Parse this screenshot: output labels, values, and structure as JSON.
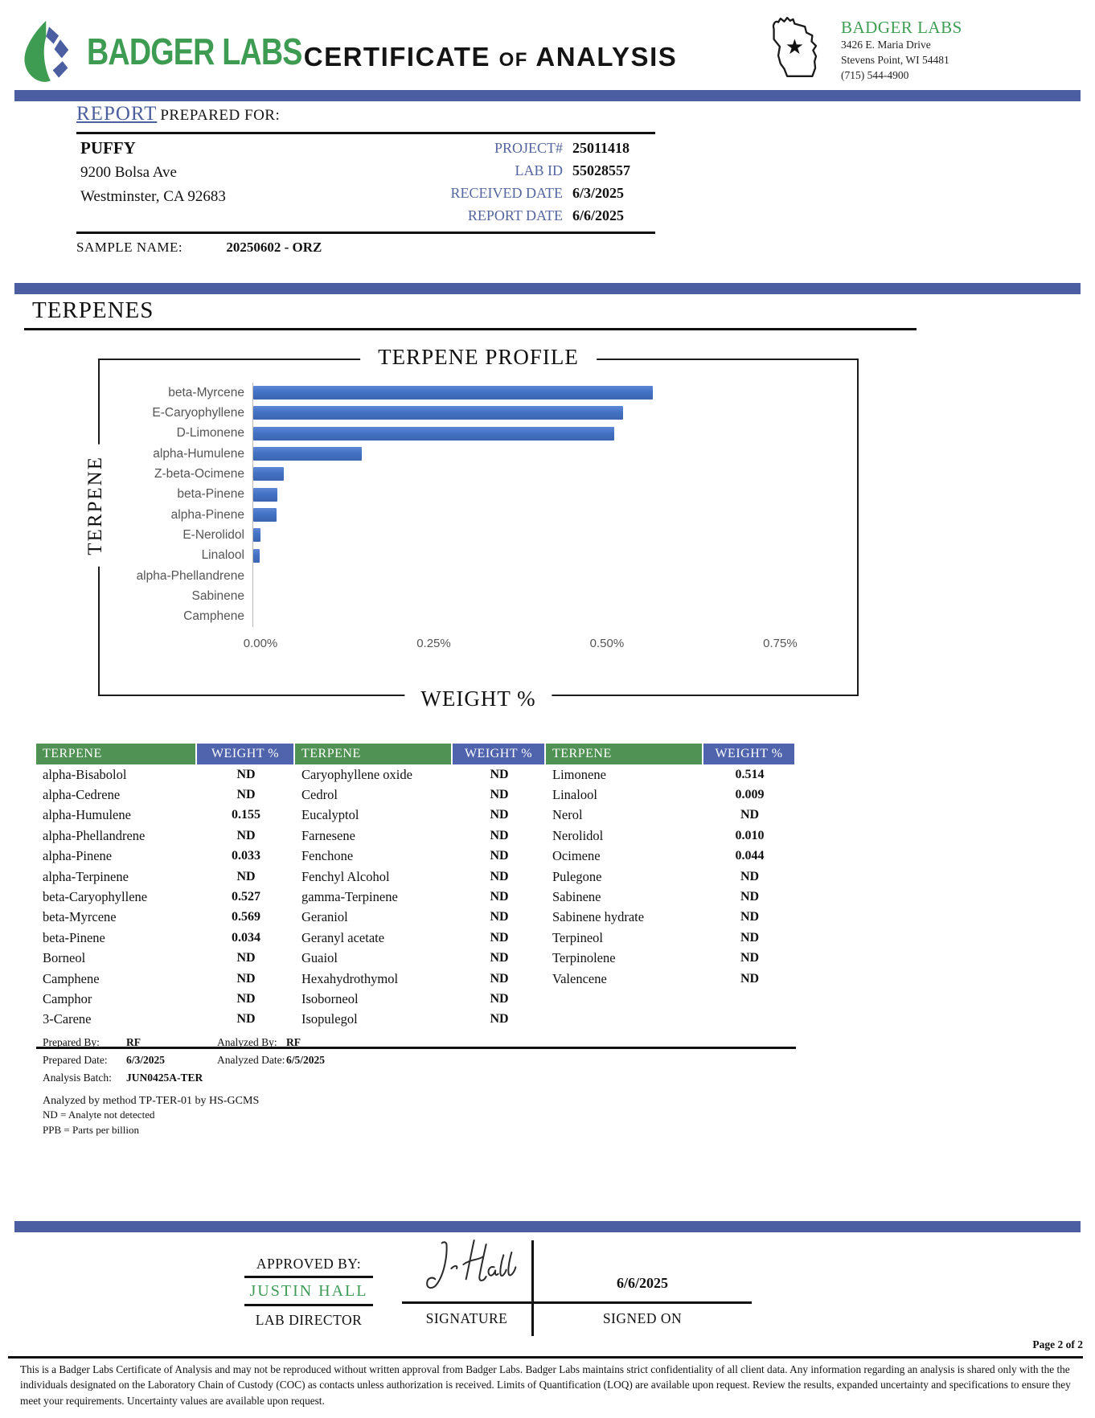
{
  "header": {
    "logo_text": "BADGER LABS",
    "title_part1": "CERTIFICATE",
    "title_of": "OF",
    "title_part2": "ANALYSIS",
    "lab_name": "BADGER LABS",
    "address_line1": "3426 E. Maria Drive",
    "address_line2": "Stevens Point, WI 54481",
    "address_line3": "(715) 544-4900",
    "star_glyph": "★"
  },
  "report": {
    "section_title": "REPORT",
    "section_subtitle": "PREPARED FOR:",
    "client_name": "PUFFY",
    "client_address1": "9200 Bolsa Ave",
    "client_address2": "Westminster, CA 92683",
    "fields": [
      {
        "label": "PROJECT#",
        "value": "25011418"
      },
      {
        "label": "LAB ID",
        "value": "55028557"
      },
      {
        "label": "RECEIVED DATE",
        "value": "6/3/2025"
      },
      {
        "label": "REPORT DATE",
        "value": "6/6/2025"
      }
    ],
    "sample_name_label": "SAMPLE NAME:",
    "sample_name": "20250602 - ORZ"
  },
  "section_title": "TERPENES",
  "chart_data": {
    "type": "bar",
    "orientation": "horizontal",
    "title": "TERPENE PROFILE",
    "xlabel": "WEIGHT %",
    "ylabel": "TERPENE",
    "categories": [
      "beta-Myrcene",
      "E-Caryophyllene",
      "D-Limonene",
      "alpha-Humulene",
      "Z-beta-Ocimene",
      "beta-Pinene",
      "alpha-Pinene",
      "E-Nerolidol",
      "Linalool",
      "alpha-Phellandrene",
      "Sabinene",
      "Camphene"
    ],
    "values": [
      0.569,
      0.527,
      0.514,
      0.155,
      0.044,
      0.034,
      0.033,
      0.01,
      0.009,
      0,
      0,
      0
    ],
    "x_ticks": [
      "0.00%",
      "0.25%",
      "0.50%",
      "0.75%"
    ],
    "x_tick_values": [
      0,
      0.25,
      0.5,
      0.75
    ],
    "xlim": [
      0,
      0.84
    ],
    "grid": false,
    "legend": false,
    "bar_color": "#4472c4"
  },
  "table": {
    "header_terpene": "TERPENE",
    "header_weight": "WEIGHT %",
    "groups": [
      {
        "rows": [
          [
            "alpha-Bisabolol",
            "ND"
          ],
          [
            "alpha-Cedrene",
            "ND"
          ],
          [
            "alpha-Humulene",
            "0.155"
          ],
          [
            "alpha-Phellandrene",
            "ND"
          ],
          [
            "alpha-Pinene",
            "0.033"
          ],
          [
            "alpha-Terpinene",
            "ND"
          ],
          [
            "beta-Caryophyllene",
            "0.527"
          ],
          [
            "beta-Myrcene",
            "0.569"
          ],
          [
            "beta-Pinene",
            "0.034"
          ],
          [
            "Borneol",
            "ND"
          ],
          [
            "Camphene",
            "ND"
          ],
          [
            "Camphor",
            "ND"
          ],
          [
            "3-Carene",
            "ND"
          ]
        ]
      },
      {
        "rows": [
          [
            "Caryophyllene oxide",
            "ND"
          ],
          [
            "Cedrol",
            "ND"
          ],
          [
            "Eucalyptol",
            "ND"
          ],
          [
            "Farnesene",
            "ND"
          ],
          [
            "Fenchone",
            "ND"
          ],
          [
            "Fenchyl Alcohol",
            "ND"
          ],
          [
            "gamma-Terpinene",
            "ND"
          ],
          [
            "Geraniol",
            "ND"
          ],
          [
            "Geranyl acetate",
            "ND"
          ],
          [
            "Guaiol",
            "ND"
          ],
          [
            "Hexahydrothymol",
            "ND"
          ],
          [
            "Isoborneol",
            "ND"
          ],
          [
            "Isopulegol",
            "ND"
          ]
        ]
      },
      {
        "rows": [
          [
            "Limonene",
            "0.514"
          ],
          [
            "Linalool",
            "0.009"
          ],
          [
            "Nerol",
            "ND"
          ],
          [
            "Nerolidol",
            "0.010"
          ],
          [
            "Ocimene",
            "0.044"
          ],
          [
            "Pulegone",
            "ND"
          ],
          [
            "Sabinene",
            "ND"
          ],
          [
            "Sabinene hydrate",
            "ND"
          ],
          [
            "Terpineol",
            "ND"
          ],
          [
            "Terpinolene",
            "ND"
          ],
          [
            "Valencene",
            "ND"
          ]
        ]
      }
    ]
  },
  "analysis_meta": {
    "prepared_by_label": "Prepared By:",
    "prepared_by": "RF",
    "analyzed_by_label": "Analyzed By:",
    "analyzed_by": "RF",
    "prepared_date_label": "Prepared Date:",
    "prepared_date": "6/3/2025",
    "analyzed_date_label": "Analyzed Date:",
    "analyzed_date": "6/5/2025",
    "analysis_batch_label": "Analysis Batch:",
    "analysis_batch": "JUN0425A-TER",
    "method_note": "Analyzed by method TP-TER-01 by HS-GCMS",
    "nd_note": "ND = Analyte not detected",
    "ppb_note": "PPB = Parts per billion"
  },
  "approval": {
    "approved_by_label": "APPROVED BY:",
    "approver_name": "JUSTIN HALL",
    "approver_role": "LAB DIRECTOR",
    "signature_label": "SIGNATURE",
    "signed_on_label": "SIGNED ON",
    "signed_date": "6/6/2025"
  },
  "page_footer": {
    "page_label": "Page 2 of 2",
    "disclaimer": "This is a Badger Labs Certificate of Analysis and may not be reproduced without written approval from Badger Labs. Badger Labs maintains strict confidentiality of all client data. Any information regarding an analysis is shared only with the the individuals designated on the Laboratory Chain of Custody (COC) as contacts unless authorization is received. Limits of Quantification (LOQ) are available upon request. Review the results, expanded uncertainty and specifications to ensure they meet your requirements. Uncertainty values are available upon request."
  },
  "colors": {
    "divider_blue": "#4b5ea2",
    "bar_blue": "#4472c4",
    "table_green": "#4f9253",
    "table_blue": "#4f64ad",
    "brand_green": "#3e9b52",
    "label_blue": "#54659f"
  }
}
